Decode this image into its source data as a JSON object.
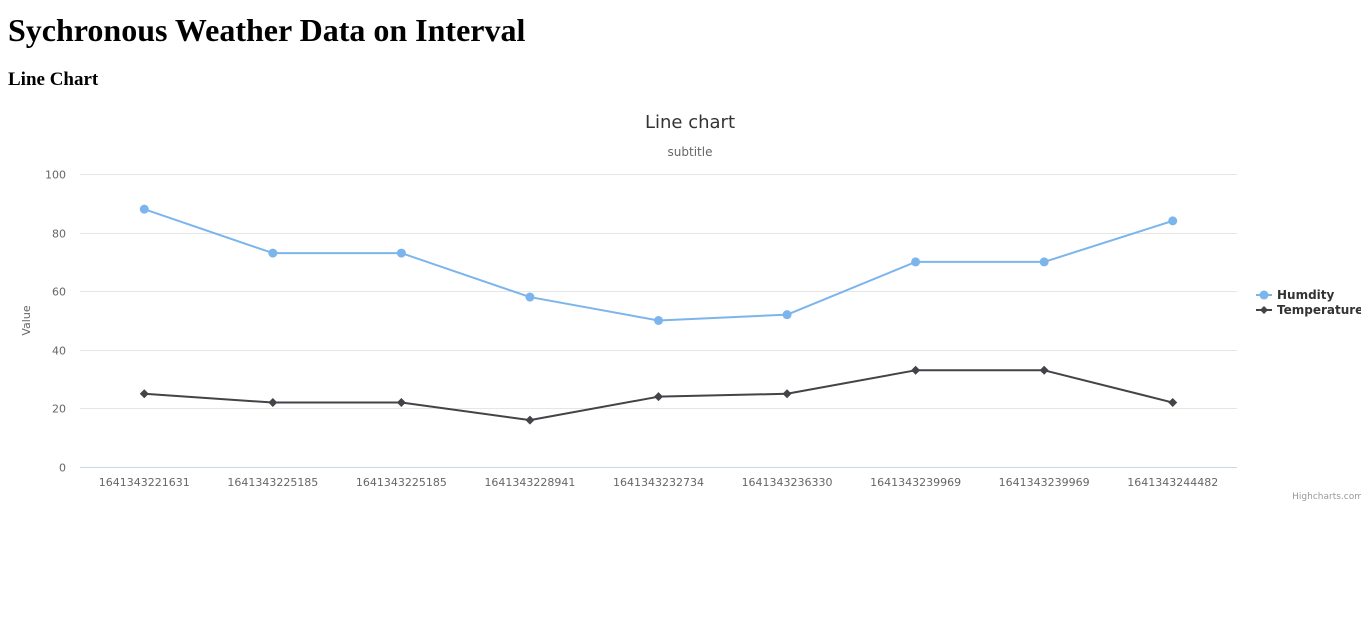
{
  "page": {
    "title": "Sychronous Weather Data on Interval",
    "section_heading": "Line Chart"
  },
  "chart_data": {
    "type": "line",
    "title": "Line chart",
    "subtitle": "subtitle",
    "xlabel": "",
    "ylabel": "Value",
    "ylim": [
      0,
      100
    ],
    "yticks": [
      0,
      20,
      40,
      60,
      80,
      100
    ],
    "grid": true,
    "legend_position": "right",
    "credits": "Highcharts.com",
    "categories": [
      "1641343221631",
      "1641343225185",
      "1641343225185",
      "1641343228941",
      "1641343232734",
      "1641343236330",
      "1641343239969",
      "1641343239969",
      "1641343244482"
    ],
    "series": [
      {
        "name": "Humdity",
        "marker": "circle",
        "color": "#7cb5ec",
        "values": [
          88,
          73,
          73,
          58,
          50,
          52,
          70,
          70,
          84
        ]
      },
      {
        "name": "Temperature",
        "marker": "diamond",
        "color": "#434348",
        "values": [
          25,
          22,
          22,
          16,
          24,
          25,
          33,
          33,
          22
        ]
      }
    ],
    "colors": {
      "grid_line": "#e6e6e6",
      "axis_line": "#ccd6eb",
      "tick_label": "#666666",
      "title": "#333333",
      "subtitle": "#666666",
      "legend_text": "#333333",
      "credits": "#999999"
    }
  }
}
